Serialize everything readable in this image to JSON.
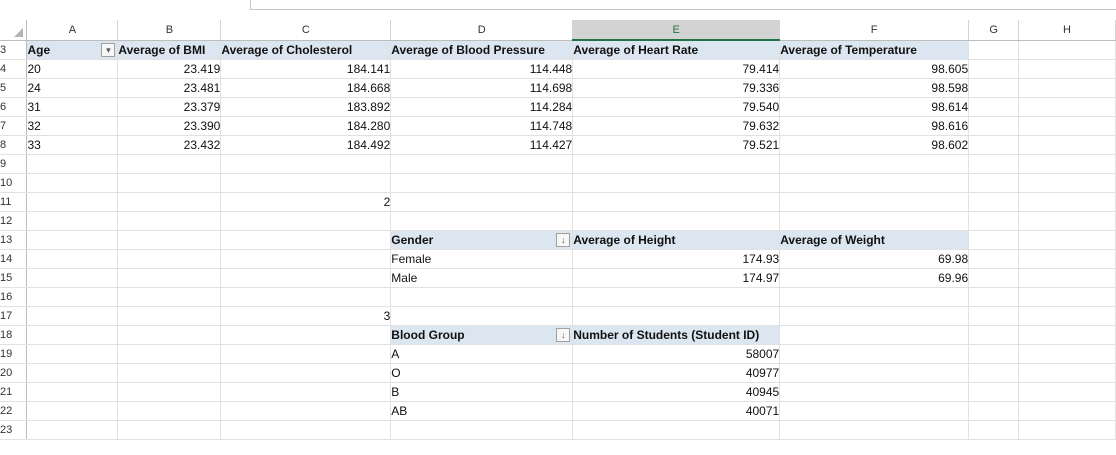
{
  "columns": [
    "A",
    "B",
    "C",
    "D",
    "E",
    "F",
    "G",
    "H"
  ],
  "selected_column": "E",
  "rows": [
    "3",
    "4",
    "5",
    "6",
    "7",
    "8",
    "9",
    "10",
    "11",
    "12",
    "13",
    "14",
    "15",
    "16",
    "17",
    "18",
    "19",
    "20",
    "21",
    "22",
    "23"
  ],
  "pivot1": {
    "headers": [
      "Age",
      "Average of BMI",
      "Average of Cholesterol",
      "Average of Blood Pressure",
      "Average of Heart Rate",
      "Average of Temperature"
    ],
    "data": [
      [
        "20",
        "23.419",
        "184.141",
        "114.448",
        "79.414",
        "98.605"
      ],
      [
        "24",
        "23.481",
        "184.668",
        "114.698",
        "79.336",
        "98.598"
      ],
      [
        "31",
        "23.379",
        "183.892",
        "114.284",
        "79.540",
        "98.614"
      ],
      [
        "32",
        "23.390",
        "184.280",
        "114.748",
        "79.632",
        "98.616"
      ],
      [
        "33",
        "23.432",
        "184.492",
        "114.427",
        "79.521",
        "98.602"
      ]
    ]
  },
  "marker_row11": "2",
  "pivot2": {
    "headers": [
      "Gender",
      "Average of Height",
      "Average of Weight"
    ],
    "data": [
      [
        "Female",
        "174.93",
        "69.98"
      ],
      [
        "Male",
        "174.97",
        "69.96"
      ]
    ]
  },
  "marker_row17": "3",
  "pivot3": {
    "headers": [
      "Blood Group",
      "Number of Students (Student ID)"
    ],
    "data": [
      [
        "A",
        "58007"
      ],
      [
        "O",
        "40977"
      ],
      [
        "B",
        "40945"
      ],
      [
        "AB",
        "40071"
      ]
    ]
  },
  "icons": {
    "filter_applied": "filter-sort-icon",
    "sort_desc": "sort-descending-icon"
  }
}
